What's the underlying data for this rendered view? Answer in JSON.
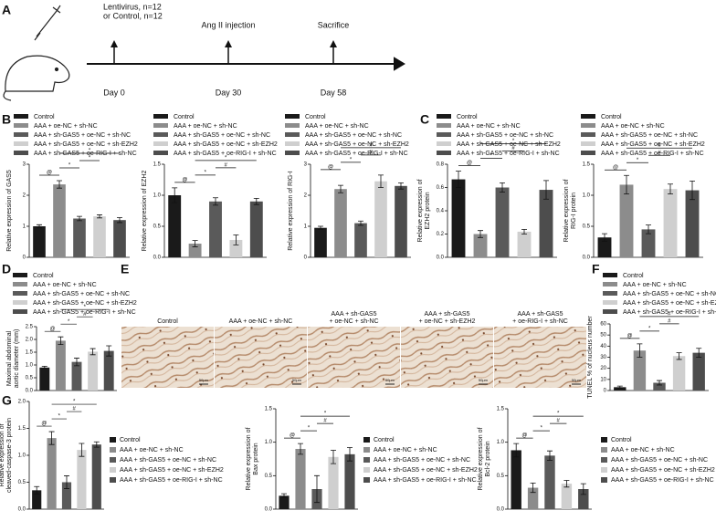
{
  "panel_letters": [
    "A",
    "B",
    "C",
    "D",
    "E",
    "F",
    "G"
  ],
  "timeline": {
    "steps": [
      {
        "label": [
          "Lentivirus, n=12",
          "or Control, n=12"
        ],
        "day": "Day 0"
      },
      {
        "label": [
          "Ang II injection"
        ],
        "day": "Day 30"
      },
      {
        "label": [
          "Sacrifice"
        ],
        "day": "Day 58"
      }
    ]
  },
  "groups": {
    "names": [
      "Control",
      "AAA + oe-NC + sh-NC",
      "AAA + sh-GAS5 + oe-NC + sh-NC",
      "AAA + sh-GAS5 + oe-NC + sh-EZH2",
      "AAA + sh-GAS5 + oe-RIG-I + sh-NC"
    ],
    "colors": [
      "#1a1a1a",
      "#8c8c8c",
      "#5a5a5a",
      "#cfcfcf",
      "#4d4d4d"
    ]
  },
  "images": {
    "labels": [
      [
        "Control"
      ],
      [
        "AAA + oe-NC + sh-NC"
      ],
      [
        "AAA + sh-GAS5",
        "+ oe-NC + sh-NC"
      ],
      [
        "AAA + sh-GAS5",
        "+ oe-NC + sh-EZH2"
      ],
      [
        "AAA + sh-GAS5",
        "+ oe-RIG-I + sh-NC"
      ]
    ],
    "scale": "50μm"
  },
  "chart_data": [
    {
      "type": "bar",
      "ylabel": [
        "Relative expression of GAS5"
      ],
      "ylim": [
        0,
        3
      ],
      "yticks": [
        0,
        1,
        2,
        3
      ],
      "values": [
        1.0,
        2.35,
        1.25,
        1.32,
        1.2
      ],
      "errors": [
        0.05,
        0.12,
        0.07,
        0.05,
        0.08
      ],
      "significance": [
        "@",
        "*",
        "*",
        "*"
      ]
    },
    {
      "type": "bar",
      "ylabel": [
        "Relative expression of EZH2"
      ],
      "ylim": [
        0,
        1.5
      ],
      "yticks": [
        {
          "value": 0,
          "label": "0.0"
        },
        {
          "value": 0.5,
          "label": "0.5"
        },
        {
          "value": 1,
          "label": "1.0"
        },
        {
          "value": 1.5,
          "label": "1.5"
        }
      ],
      "values": [
        1.0,
        0.22,
        0.9,
        0.28,
        0.9
      ],
      "errors": [
        0.12,
        0.05,
        0.06,
        0.08,
        0.05
      ],
      "significance": [
        "@",
        "*",
        "#",
        "*"
      ]
    },
    {
      "type": "bar",
      "ylabel": [
        "Relative expression of RIG-I"
      ],
      "ylim": [
        0,
        3
      ],
      "yticks": [
        0,
        1,
        2,
        3
      ],
      "values": [
        0.95,
        2.2,
        1.1,
        2.45,
        2.3
      ],
      "errors": [
        0.05,
        0.12,
        0.07,
        0.2,
        0.1
      ],
      "significance": [
        "@",
        "*",
        "#",
        "#"
      ]
    },
    {
      "type": "bar",
      "ylabel": [
        "Relative expression of",
        "EZH2 protein"
      ],
      "ylim": [
        0,
        0.8
      ],
      "yticks": [
        {
          "value": 0,
          "label": "0.0"
        },
        {
          "value": 0.2,
          "label": "0.2"
        },
        {
          "value": 0.4,
          "label": "0.4"
        },
        {
          "value": 0.6,
          "label": "0.6"
        },
        {
          "value": 0.8,
          "label": "0.8"
        }
      ],
      "values": [
        0.67,
        0.2,
        0.6,
        0.22,
        0.58
      ],
      "errors": [
        0.07,
        0.03,
        0.04,
        0.02,
        0.08
      ],
      "significance": [
        "@",
        "*",
        "#",
        "*"
      ]
    },
    {
      "type": "bar",
      "ylabel": [
        "Relative expression of",
        "RIG-I protein"
      ],
      "ylim": [
        0,
        1.5
      ],
      "yticks": [
        {
          "value": 0,
          "label": "0.0"
        },
        {
          "value": 0.5,
          "label": "0.5"
        },
        {
          "value": 1,
          "label": "1.0"
        },
        {
          "value": 1.5,
          "label": "1.5"
        }
      ],
      "values": [
        0.32,
        1.17,
        0.45,
        1.1,
        1.08
      ],
      "errors": [
        0.06,
        0.15,
        0.07,
        0.08,
        0.15
      ],
      "significance": [
        "@",
        "*",
        "#",
        "#"
      ]
    },
    {
      "type": "bar",
      "ylabel": [
        "Maximal abdominal",
        "aortic diameter (mm)"
      ],
      "ylim": [
        0,
        2.5
      ],
      "yticks": [
        {
          "value": 0,
          "label": "0.0"
        },
        {
          "value": 0.5,
          "label": "0.5"
        },
        {
          "value": 1,
          "label": "1.0"
        },
        {
          "value": 1.5,
          "label": "1.5"
        },
        {
          "value": 2,
          "label": "2.0"
        },
        {
          "value": 2.5,
          "label": "2.5"
        }
      ],
      "values": [
        0.9,
        1.95,
        1.12,
        1.52,
        1.55
      ],
      "errors": [
        0.05,
        0.15,
        0.15,
        0.12,
        0.2
      ],
      "significance": [
        "@",
        "*",
        "#",
        "*"
      ]
    },
    {
      "type": "bar",
      "ylabel": [
        "TUNEL % of nucleus number"
      ],
      "ylim": [
        0,
        60
      ],
      "yticks": [
        0,
        10,
        20,
        30,
        40,
        50,
        60
      ],
      "values": [
        3,
        36,
        7,
        31,
        34
      ],
      "errors": [
        1,
        6,
        2,
        3,
        4
      ],
      "significance": [
        "@",
        "*",
        "#",
        "#"
      ]
    },
    {
      "type": "bar",
      "ylabel": [
        "Relative expression of",
        "cleaved-caspase-3 protein"
      ],
      "ylim": [
        0,
        2
      ],
      "yticks": [
        {
          "value": 0,
          "label": "0.0"
        },
        {
          "value": 0.5,
          "label": "0.5"
        },
        {
          "value": 1,
          "label": "1.0"
        },
        {
          "value": 1.5,
          "label": "1.5"
        },
        {
          "value": 2,
          "label": "2.0"
        }
      ],
      "values": [
        0.35,
        1.32,
        0.5,
        1.1,
        1.2
      ],
      "errors": [
        0.07,
        0.12,
        0.12,
        0.12,
        0.05
      ],
      "significance": [
        "@",
        "*",
        "#",
        "*"
      ]
    },
    {
      "type": "bar",
      "ylabel": [
        "Relative expression of",
        "Bax protein"
      ],
      "ylim": [
        0,
        1.5
      ],
      "yticks": [
        {
          "value": 0,
          "label": "0.0"
        },
        {
          "value": 0.5,
          "label": "0.5"
        },
        {
          "value": 1,
          "label": "1.0"
        },
        {
          "value": 1.5,
          "label": "1.5"
        }
      ],
      "values": [
        0.2,
        0.9,
        0.3,
        0.78,
        0.82
      ],
      "errors": [
        0.03,
        0.08,
        0.2,
        0.1,
        0.1
      ],
      "significance": [
        "@",
        "*",
        "#",
        "*"
      ]
    },
    {
      "type": "bar",
      "ylabel": [
        "Relative expression of",
        "Bcl-2 protein"
      ],
      "ylim": [
        0,
        1.5
      ],
      "yticks": [
        {
          "value": 0,
          "label": "0.0"
        },
        {
          "value": 0.5,
          "label": "0.5"
        },
        {
          "value": 1,
          "label": "1.0"
        },
        {
          "value": 1.5,
          "label": "1.5"
        }
      ],
      "values": [
        0.88,
        0.32,
        0.8,
        0.38,
        0.3
      ],
      "errors": [
        0.1,
        0.07,
        0.07,
        0.05,
        0.08
      ],
      "significance": [
        "@",
        "*",
        "#",
        "*"
      ]
    }
  ]
}
